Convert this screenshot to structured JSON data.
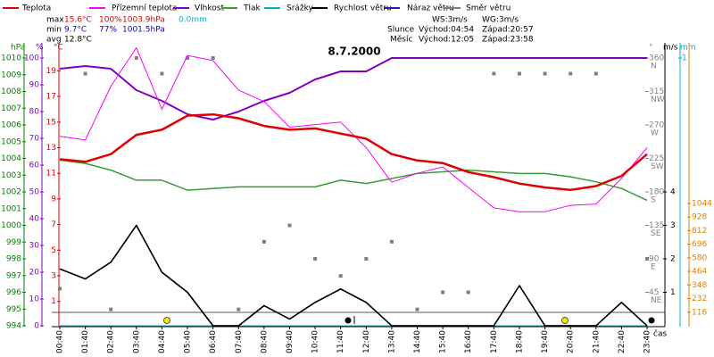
{
  "chart_data": {
    "type": "line",
    "title": "8.7.2000",
    "categories": [
      "00:40",
      "01:40",
      "02:40",
      "03:40",
      "04:40",
      "05:40",
      "06:40",
      "07:40",
      "08:40",
      "09:40",
      "10:40",
      "11:40",
      "12:40",
      "13:40",
      "14:40",
      "15:40",
      "16:40",
      "17:40",
      "18:40",
      "19:40",
      "20:40",
      "21:40",
      "22:40",
      "23:40"
    ],
    "x_label": "čas",
    "axes": [
      {
        "label": "hPa",
        "color": "#008000",
        "ylim": [
          994,
          1010
        ],
        "yticks": [
          994,
          995,
          996,
          997,
          998,
          999,
          1000,
          1001,
          1002,
          1003,
          1004,
          1005,
          1006,
          1007,
          1008,
          1009,
          1010
        ]
      },
      {
        "label": "%",
        "color": "#8000c0",
        "ylim": [
          0,
          100
        ],
        "yticks": [
          0,
          10,
          20,
          30,
          40,
          50,
          60,
          70,
          80,
          90,
          100
        ]
      },
      {
        "label": "°C",
        "color": "#e00000",
        "ylim": [
          -0.9,
          20
        ],
        "yticks": [
          1,
          3,
          5,
          7,
          9,
          11,
          13,
          15,
          17,
          19
        ]
      },
      {
        "label": "°",
        "color": "#808080",
        "ylim": [
          0,
          360
        ],
        "yticks": [
          45,
          90,
          135,
          180,
          225,
          270,
          315,
          360
        ],
        "tick_names": [
          "NE",
          "E",
          "SE",
          "S",
          "SW",
          "W",
          "NW",
          "N"
        ]
      },
      {
        "label": "m/s",
        "color": "#000000",
        "ylim": [
          0,
          8
        ],
        "yticks": [
          1,
          2,
          3,
          4
        ]
      },
      {
        "label": "mm",
        "color": "#00b0d0",
        "ylim": [
          0,
          1
        ],
        "yticks": [
          1
        ]
      },
      {
        "color": "#e08000",
        "ylim": [
          0,
          2286
        ],
        "yticks": [
          116,
          232,
          348,
          464,
          580,
          696,
          812,
          928,
          1044
        ]
      }
    ],
    "series": [
      {
        "name": "Teplota",
        "color": "#e00000",
        "axis": 2,
        "values": [
          12.1,
          11.9,
          12.5,
          14.0,
          14.4,
          15.5,
          15.6,
          15.3,
          14.7,
          14.4,
          14.5,
          14.1,
          13.7,
          12.5,
          12.0,
          11.8,
          11.1,
          10.7,
          10.2,
          9.9,
          9.7,
          10.0,
          10.8,
          12.5
        ]
      },
      {
        "name": "Přízemní teplota",
        "color": "#ff00ff",
        "axis": 2,
        "values": [
          13.9,
          13.6,
          17.8,
          20.8,
          16.0,
          20.2,
          19.8,
          17.5,
          16.6,
          14.6,
          14.8,
          15.0,
          13.0,
          10.3,
          11.0,
          11.5,
          9.9,
          8.3,
          8.0,
          8.0,
          8.5,
          8.6,
          10.6,
          13.0
        ]
      },
      {
        "name": "Vlhkost",
        "color": "#8000c0",
        "axis": 1,
        "values": [
          96,
          97,
          96,
          88,
          84,
          79,
          77,
          80,
          84,
          87,
          92,
          95,
          95,
          100,
          100,
          100,
          100,
          100,
          100,
          100,
          100,
          100,
          100,
          100
        ]
      },
      {
        "name": "Tlak",
        "color": "#3a9a3a",
        "axis": 0,
        "values": [
          1003.9,
          1003.7,
          1003.3,
          1002.7,
          1002.7,
          1002.1,
          1002.2,
          1002.3,
          1002.3,
          1002.3,
          1002.3,
          1002.7,
          1002.5,
          1002.8,
          1003.1,
          1003.2,
          1003.3,
          1003.2,
          1003.1,
          1003.1,
          1002.9,
          1002.6,
          1002.2,
          1001.5
        ]
      },
      {
        "name": "Srážky",
        "color": "#00b0d0",
        "axis": 5,
        "values": [
          0,
          0,
          0,
          0,
          0,
          0,
          0,
          0,
          0,
          0,
          0,
          0,
          0,
          0,
          0,
          0,
          0,
          0,
          0,
          0,
          0,
          0,
          0,
          0
        ]
      },
      {
        "name": "Rychlost větru",
        "color": "#000000",
        "axis": 4,
        "values": [
          1.7,
          1.4,
          1.9,
          3.0,
          1.6,
          1.0,
          0,
          0,
          0.6,
          0.2,
          0.7,
          1.1,
          0.7,
          0,
          0,
          0,
          0,
          0,
          1.2,
          0,
          0,
          0,
          0.7,
          0
        ]
      },
      {
        "name": "Náraz větru",
        "color": "#2020a0",
        "axis": 4,
        "values": [
          1.7,
          1.4,
          1.9,
          3.0,
          1.6,
          1.0,
          0,
          0,
          0.6,
          0.2,
          0.7,
          1.1,
          0.7,
          0,
          0,
          0,
          0,
          0,
          1.2,
          0,
          0,
          0,
          0.7,
          0
        ]
      },
      {
        "name": "Směr větru",
        "color": "#808080",
        "axis": 3,
        "mode": "markers",
        "values": [
          50,
          339,
          22,
          360,
          339,
          360,
          360,
          22,
          113,
          135,
          90,
          67,
          90,
          113,
          22,
          45,
          45,
          339,
          339,
          339,
          339,
          339,
          null,
          90
        ]
      }
    ],
    "stats": {
      "rows": [
        [
          "max",
          "15.6°C",
          "100%",
          "1003.9hPa",
          "0.0mm"
        ],
        [
          "min",
          "9.7°C",
          "77%",
          "1001.5hPa"
        ],
        [
          "avg",
          "12.8°C"
        ]
      ]
    },
    "info": {
      "wind": [
        "WS:3m/s",
        "WG:3m/s"
      ],
      "sun": [
        "Slunce",
        "Východ:04:54",
        "Západ:20:57"
      ],
      "moon": [
        "Měsíc",
        "Východ:12:05",
        "Západ:23:58"
      ]
    }
  }
}
